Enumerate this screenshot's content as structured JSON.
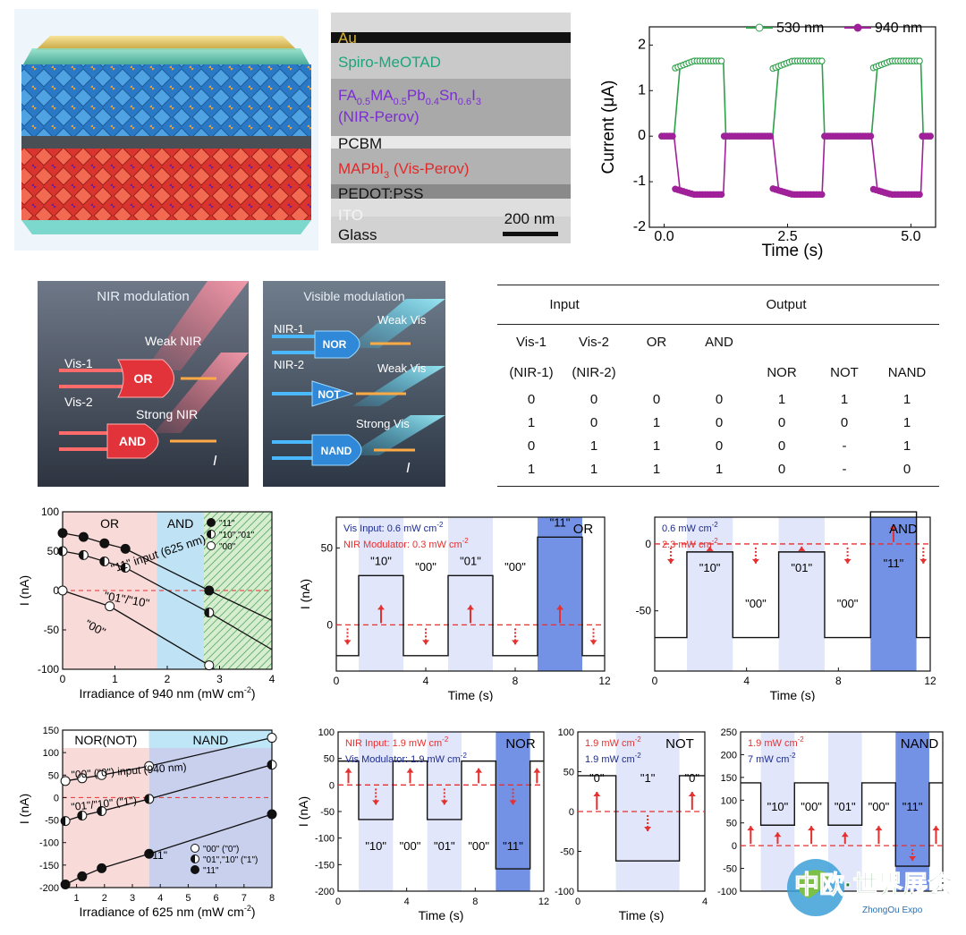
{
  "stack_image": {
    "description_labels": []
  },
  "sem_labels": {
    "au": "Au",
    "spiro": "Spiro-MeOTAD",
    "nir_perov_1": "FA",
    "nir_perov_s1": "0.5",
    "nir_perov_2": "MA",
    "nir_perov_s2": "0.5",
    "nir_perov_3": "Pb",
    "nir_perov_s3": "0.4",
    "nir_perov_4": "Sn",
    "nir_perov_s4": "0.6",
    "nir_perov_5": "I",
    "nir_perov_s5": "3",
    "nir_perov_name": "(NIR-Perov)",
    "pcbm": "PCBM",
    "vis_perov_1": "MAPbI",
    "vis_perov_s1": "3",
    "vis_perov_name": " (Vis-Perov)",
    "pedot": "PEDOT:PSS",
    "ito": "ITO",
    "glass": "Glass",
    "scale": "200 nm"
  },
  "gate_images": {
    "nir": {
      "title": "NIR modulation",
      "weak": "Weak NIR",
      "strong": "Strong NIR",
      "in1": "Vis-1",
      "in2": "Vis-2",
      "gate1": "OR",
      "gate2": "AND",
      "out": "I"
    },
    "vis": {
      "title": "Visible modulation",
      "in1": "NIR-1",
      "in2": "NIR-2",
      "weak1": "Weak Vis",
      "weak2": "Weak Vis",
      "strong": "Strong Vis",
      "gate1": "NOR",
      "gate2": "NOT",
      "gate3": "NAND",
      "out": "I"
    }
  },
  "truth_table": {
    "group_input": "Input",
    "group_output": "Output",
    "headers_row1": [
      "Vis-1",
      "Vis-2",
      "OR",
      "AND",
      "",
      "",
      ""
    ],
    "headers_row2": [
      "(NIR-1)",
      "(NIR-2)",
      "",
      "",
      "NOR",
      "NOT",
      "NAND"
    ],
    "rows": [
      [
        "0",
        "0",
        "0",
        "0",
        "1",
        "1",
        "1"
      ],
      [
        "1",
        "0",
        "1",
        "0",
        "0",
        "0",
        "1"
      ],
      [
        "0",
        "1",
        "1",
        "0",
        "0",
        "-",
        "1"
      ],
      [
        "1",
        "1",
        "1",
        "1",
        "0",
        "-",
        "0"
      ]
    ]
  },
  "chart_data": [
    {
      "id": "current_time",
      "type": "line",
      "xlabel": "Time (s)",
      "ylabel": "Current (μA)",
      "xlim": [
        -0.3,
        5.5
      ],
      "ylim": [
        -2,
        2.4
      ],
      "xticks": [
        "0.0",
        "2.5",
        "5.0"
      ],
      "xtick_values": [
        0,
        2.5,
        5
      ],
      "yticks": [
        "2",
        "1",
        "0",
        "-1",
        "-2"
      ],
      "ytick_values": [
        2,
        1,
        0,
        -1,
        -2
      ],
      "series": [
        {
          "name": "530 nm",
          "color": "#2ea04a",
          "on_value": 1.65,
          "off_value": 0,
          "on_windows": [
            [
              0.2,
              1.2
            ],
            [
              2.2,
              3.2
            ],
            [
              4.2,
              5.2
            ]
          ]
        },
        {
          "name": "940 nm",
          "color": "#a0209a",
          "on_value": -1.28,
          "off_value": 0,
          "on_windows": [
            [
              0.2,
              1.2
            ],
            [
              2.2,
              3.2
            ],
            [
              4.2,
              5.2
            ]
          ]
        }
      ],
      "legend_position": "top-right"
    },
    {
      "id": "or_and_irradiance",
      "type": "line",
      "xlabel": "Irradiance of 940 nm (mW cm",
      "xlabel_sup": "-2",
      "xlabel_end": ")",
      "ylabel": "I (nA)",
      "xlim": [
        0,
        4
      ],
      "ylim": [
        -100,
        100
      ],
      "xticks": [
        "0",
        "1",
        "2",
        "3",
        "4"
      ],
      "yticks": [
        "100",
        "50",
        "0",
        "-50",
        "-100"
      ],
      "regions": [
        {
          "label": "OR",
          "x": [
            0,
            1.8
          ],
          "color": "#f8dad8"
        },
        {
          "label": "AND",
          "x": [
            1.8,
            2.7
          ],
          "color": "#bfe3f5"
        },
        {
          "label": "",
          "x": [
            2.7,
            4
          ],
          "color": "#cde8c8",
          "hatched": true
        }
      ],
      "threshold": 0,
      "series": [
        {
          "name": "\"11\"",
          "style": "filled",
          "x": [
            0,
            0.4,
            0.8,
            1.2,
            2.8
          ],
          "y": [
            73,
            68,
            60,
            53,
            0
          ],
          "line_end": [
            4,
            -38
          ]
        },
        {
          "name": "\"10\",\"01\"",
          "style": "half",
          "x": [
            0,
            0.4,
            0.8,
            1.2,
            2.8
          ],
          "y": [
            50,
            45,
            37,
            29,
            -28
          ],
          "line_end": [
            4,
            -75
          ]
        },
        {
          "name": "\"00\"",
          "style": "open",
          "x": [
            0,
            0.9,
            2.8
          ],
          "y": [
            0,
            -20,
            -95
          ],
          "line_end": [
            2.9,
            -100
          ]
        }
      ],
      "annotations": [
        "\"11\" input (625 nm)",
        "\"01\"/\"10\"",
        "\"00\""
      ]
    },
    {
      "id": "or_time",
      "type": "line",
      "xlabel": "Time (s)",
      "ylabel": "I (nA)",
      "xlim": [
        0,
        12
      ],
      "ylim": [
        -30,
        70
      ],
      "xticks": [
        "0",
        "4",
        "8",
        "12"
      ],
      "yticks": [
        "50",
        "0"
      ],
      "legend_lines": [
        "Vis Input: 0.6 mW cm",
        "NIR Modulator: 0.3 mW cm"
      ],
      "legend_sup": "-2",
      "gate": "OR",
      "segments": [
        {
          "x": [
            0,
            1
          ],
          "y": -20
        },
        {
          "x": [
            1,
            3
          ],
          "y": 32,
          "label": "\"10\""
        },
        {
          "x": [
            3,
            5
          ],
          "y": -20,
          "label": "\"00\""
        },
        {
          "x": [
            5,
            7
          ],
          "y": 32,
          "label": "\"01\""
        },
        {
          "x": [
            7,
            9
          ],
          "y": -20,
          "label": "\"00\""
        },
        {
          "x": [
            9,
            11
          ],
          "y": 57,
          "label": "\"11\""
        },
        {
          "x": [
            11,
            12
          ],
          "y": -20
        }
      ],
      "threshold": 0
    },
    {
      "id": "and_time",
      "type": "line",
      "xlabel": "Time (s)",
      "ylabel": "",
      "xlim": [
        0,
        12
      ],
      "ylim": [
        -95,
        20
      ],
      "xticks": [
        "0",
        "4",
        "8",
        "12"
      ],
      "yticks": [
        "0",
        "-50"
      ],
      "legend_lines": [
        "0.6 mW cm",
        "2.3 mW cm"
      ],
      "legend_sup": "-2",
      "gate": "AND",
      "segments": [
        {
          "x": [
            0,
            1.4
          ],
          "y": -70
        },
        {
          "x": [
            1.4,
            3.4
          ],
          "y": -6,
          "label": "\"10\""
        },
        {
          "x": [
            3.4,
            5.4
          ],
          "y": -70,
          "label": "\"00\""
        },
        {
          "x": [
            5.4,
            7.4
          ],
          "y": -6,
          "label": "\"01\""
        },
        {
          "x": [
            7.4,
            9.4
          ],
          "y": -70,
          "label": "\"00\""
        },
        {
          "x": [
            9.4,
            11.4
          ],
          "y": 24,
          "label": "\"11\""
        },
        {
          "x": [
            11.4,
            12
          ],
          "y": -70
        }
      ],
      "threshold": 0
    },
    {
      "id": "nor_nand_irradiance",
      "type": "line",
      "xlabel": "Irradiance of 625 nm (mW cm",
      "xlabel_sup": "-2",
      "xlabel_end": ")",
      "ylabel": "I (nA)",
      "xlim": [
        0.5,
        8
      ],
      "ylim": [
        -200,
        150
      ],
      "xticks": [
        "1",
        "2",
        "3",
        "4",
        "5",
        "6",
        "7",
        "8"
      ],
      "yticks": [
        "150",
        "100",
        "50",
        "0",
        "-50",
        "-100",
        "-150",
        "-200"
      ],
      "regions": [
        {
          "label": "NOR(NOT)",
          "x": [
            0.5,
            3.6
          ],
          "color": "#f8dad8"
        },
        {
          "label": "NAND",
          "x": [
            3.6,
            8
          ],
          "color": "#c8d0ee"
        }
      ],
      "threshold": 0,
      "series": [
        {
          "name": "\"00\" (\"0\")",
          "style": "open",
          "x": [
            0.6,
            1.2,
            1.9,
            3.6,
            8
          ],
          "y": [
            37,
            43,
            50,
            70,
            133
          ]
        },
        {
          "name": "\"01\",\"10\" (\"1\")",
          "style": "half",
          "x": [
            0.6,
            1.2,
            1.9,
            3.6,
            8
          ],
          "y": [
            -52,
            -40,
            -30,
            -3,
            73
          ]
        },
        {
          "name": "\"11\"",
          "style": "filled",
          "x": [
            0.6,
            1.2,
            1.9,
            3.6,
            8
          ],
          "y": [
            -193,
            -175,
            -157,
            -125,
            -37
          ]
        }
      ],
      "annotations": [
        "\"00\" (\"0\") input (940 nm)",
        "\"01\"/\"10\" (\"1\")",
        "\"11\""
      ]
    },
    {
      "id": "nor_time",
      "type": "line",
      "xlabel": "Time (s)",
      "ylabel": "I (nA)",
      "xlim": [
        0,
        12
      ],
      "ylim": [
        -200,
        100
      ],
      "xticks": [
        "0",
        "4",
        "8",
        "12"
      ],
      "yticks": [
        "100",
        "50",
        "0",
        "-50",
        "-100",
        "-150",
        "-200"
      ],
      "legend_lines": [
        "NIR Input: 1.9 mW cm",
        "Vis Modulator: 1.9 mW cm"
      ],
      "legend_sup": "-2",
      "gate": "NOR",
      "segments": [
        {
          "x": [
            0,
            1.2
          ],
          "y": 45
        },
        {
          "x": [
            1.2,
            3.2
          ],
          "y": -65,
          "label": "\"10\""
        },
        {
          "x": [
            3.2,
            5.2
          ],
          "y": 45,
          "label": "\"00\""
        },
        {
          "x": [
            5.2,
            7.2
          ],
          "y": -65,
          "label": "\"01\""
        },
        {
          "x": [
            7.2,
            9.2
          ],
          "y": 45,
          "label": "\"00\""
        },
        {
          "x": [
            9.2,
            11.2
          ],
          "y": -158,
          "label": "\"11\""
        },
        {
          "x": [
            11.2,
            12
          ],
          "y": 45
        }
      ],
      "threshold": 0
    },
    {
      "id": "not_time",
      "type": "line",
      "xlabel": "Time (s)",
      "ylabel": "",
      "xlim": [
        0,
        4
      ],
      "ylim": [
        -100,
        100
      ],
      "xticks": [
        "0",
        "4"
      ],
      "yticks": [
        "100",
        "50",
        "0",
        "-50",
        "-100"
      ],
      "legend_lines": [
        "1.9 mW cm",
        "1.9 mW cm"
      ],
      "legend_sup": "-2",
      "gate": "NOT",
      "segments": [
        {
          "x": [
            0,
            1.2
          ],
          "y": 45,
          "label": "\"0\""
        },
        {
          "x": [
            1.2,
            3.2
          ],
          "y": -62,
          "label": "\"1\""
        },
        {
          "x": [
            3.2,
            4
          ],
          "y": 45,
          "label": "\"0\""
        }
      ],
      "threshold": 0
    },
    {
      "id": "nand_time",
      "type": "line",
      "xlabel": "",
      "ylabel": "",
      "xlim": [
        0,
        12
      ],
      "ylim": [
        -100,
        250
      ],
      "xticks": [],
      "yticks": [
        "250",
        "200",
        "150",
        "100",
        "50",
        "0",
        "-50",
        "-100"
      ],
      "legend_lines": [
        "1.9 mW cm",
        "7 mW cm"
      ],
      "legend_sup": "-2",
      "gate": "NAND",
      "segments": [
        {
          "x": [
            0,
            1.2
          ],
          "y": 138
        },
        {
          "x": [
            1.2,
            3.2
          ],
          "y": 45,
          "label": "\"10\""
        },
        {
          "x": [
            3.2,
            5.2
          ],
          "y": 138,
          "label": "\"00\""
        },
        {
          "x": [
            5.2,
            7.2
          ],
          "y": 45,
          "label": "\"01\""
        },
        {
          "x": [
            7.2,
            9.2
          ],
          "y": 138,
          "label": "\"00\""
        },
        {
          "x": [
            9.2,
            11.2
          ],
          "y": -45,
          "label": "\"11\""
        },
        {
          "x": [
            11.2,
            12
          ],
          "y": 138
        }
      ],
      "threshold": 0
    }
  ],
  "watermark": {
    "logo_text": "中欧·世界展会",
    "logo_sub": "ZhongOu Expo"
  }
}
